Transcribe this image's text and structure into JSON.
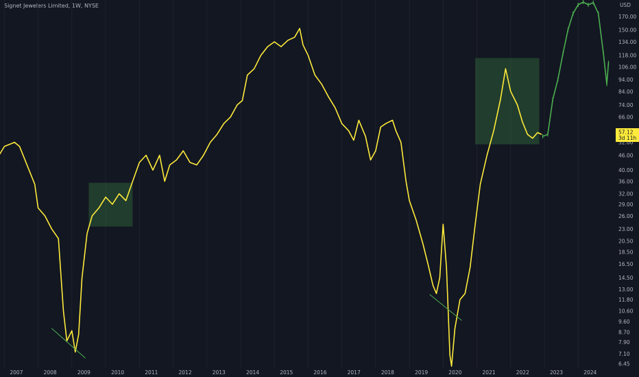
{
  "header": {
    "symbol_title": "Signet Jewelers Limited, 1W, NYSE"
  },
  "colors": {
    "background": "#131722",
    "price_line": "#ffeb3b",
    "recent_bars": "#4caf50",
    "box_fill": "#4caf50",
    "trend_line": "#4caf50",
    "axis_text": "#b2b5be",
    "badge": "#ffeb3b"
  },
  "chart_data": {
    "type": "line",
    "xlabel": "",
    "ylabel": "",
    "y_scale": "log",
    "y_unit": "USD",
    "x_ticks": [
      "2007",
      "2008",
      "2009",
      "2010",
      "2011",
      "2012",
      "2013",
      "2014",
      "2015",
      "2016",
      "2017",
      "2018",
      "2019",
      "2020",
      "2021",
      "2022",
      "2023",
      "2024"
    ],
    "y_ticks": [
      170.0,
      150.0,
      134.0,
      118.0,
      106.0,
      94.0,
      84.0,
      74.0,
      66.0,
      57.12,
      52.0,
      46.0,
      40.0,
      36.0,
      32.0,
      29.0,
      26.0,
      23.0,
      20.5,
      18.5,
      16.5,
      14.5,
      13.0,
      11.8,
      10.6,
      9.6,
      8.7,
      7.9,
      7.1,
      6.45
    ],
    "series": [
      {
        "style": "line",
        "points": [
          [
            2006.8,
            45
          ],
          [
            2007.0,
            50
          ],
          [
            2007.3,
            52
          ],
          [
            2007.45,
            50
          ],
          [
            2007.7,
            41
          ],
          [
            2007.9,
            35
          ],
          [
            2008.0,
            28
          ],
          [
            2008.2,
            26
          ],
          [
            2008.4,
            23
          ],
          [
            2008.6,
            21
          ],
          [
            2008.75,
            10.6
          ],
          [
            2008.85,
            8.0
          ],
          [
            2009.0,
            8.8
          ],
          [
            2009.1,
            7.2
          ],
          [
            2009.2,
            8.5
          ],
          [
            2009.3,
            14.5
          ],
          [
            2009.45,
            22
          ],
          [
            2009.6,
            26
          ],
          [
            2009.8,
            28
          ],
          [
            2010.0,
            31
          ],
          [
            2010.2,
            29
          ],
          [
            2010.4,
            32
          ],
          [
            2010.6,
            30
          ],
          [
            2010.8,
            36
          ],
          [
            2011.0,
            43
          ],
          [
            2011.2,
            46
          ],
          [
            2011.4,
            40
          ],
          [
            2011.6,
            46
          ],
          [
            2011.75,
            36
          ],
          [
            2011.9,
            42
          ],
          [
            2012.1,
            44
          ],
          [
            2012.3,
            48
          ],
          [
            2012.5,
            43
          ],
          [
            2012.7,
            42
          ],
          [
            2012.9,
            46
          ],
          [
            2013.1,
            52
          ],
          [
            2013.3,
            56
          ],
          [
            2013.5,
            62
          ],
          [
            2013.7,
            66
          ],
          [
            2013.9,
            74
          ],
          [
            2014.05,
            77
          ],
          [
            2014.2,
            98
          ],
          [
            2014.4,
            104
          ],
          [
            2014.6,
            118
          ],
          [
            2014.8,
            128
          ],
          [
            2015.0,
            134
          ],
          [
            2015.2,
            128
          ],
          [
            2015.4,
            136
          ],
          [
            2015.6,
            140
          ],
          [
            2015.75,
            152
          ],
          [
            2015.85,
            130
          ],
          [
            2016.0,
            118
          ],
          [
            2016.2,
            98
          ],
          [
            2016.4,
            90
          ],
          [
            2016.6,
            80
          ],
          [
            2016.8,
            72
          ],
          [
            2017.0,
            62
          ],
          [
            2017.2,
            58
          ],
          [
            2017.35,
            53
          ],
          [
            2017.5,
            64
          ],
          [
            2017.7,
            55
          ],
          [
            2017.85,
            44
          ],
          [
            2018.0,
            48
          ],
          [
            2018.15,
            60
          ],
          [
            2018.3,
            62
          ],
          [
            2018.5,
            64
          ],
          [
            2018.6,
            58
          ],
          [
            2018.75,
            52
          ],
          [
            2018.9,
            36
          ],
          [
            2019.0,
            30
          ],
          [
            2019.2,
            25
          ],
          [
            2019.4,
            20
          ],
          [
            2019.55,
            16.5
          ],
          [
            2019.7,
            13.5
          ],
          [
            2019.8,
            12.5
          ],
          [
            2019.9,
            14.5
          ],
          [
            2020.0,
            24
          ],
          [
            2020.1,
            16
          ],
          [
            2020.2,
            7.0
          ],
          [
            2020.25,
            6.3
          ],
          [
            2020.35,
            9.0
          ],
          [
            2020.5,
            11.8
          ],
          [
            2020.65,
            12.5
          ],
          [
            2020.8,
            16
          ],
          [
            2020.95,
            24
          ],
          [
            2021.1,
            35
          ],
          [
            2021.3,
            46
          ],
          [
            2021.5,
            58
          ],
          [
            2021.7,
            78
          ],
          [
            2021.85,
            104
          ],
          [
            2022.0,
            84
          ],
          [
            2022.2,
            74
          ],
          [
            2022.35,
            63
          ],
          [
            2022.5,
            56
          ],
          [
            2022.65,
            54
          ],
          [
            2022.8,
            57
          ],
          [
            2022.92,
            56
          ]
        ]
      },
      {
        "style": "bars",
        "points": [
          [
            2022.95,
            55
          ],
          [
            2023.1,
            56
          ],
          [
            2023.25,
            78
          ],
          [
            2023.4,
            94
          ],
          [
            2023.55,
            120
          ],
          [
            2023.7,
            150
          ],
          [
            2023.85,
            175
          ],
          [
            2024.0,
            190
          ],
          [
            2024.15,
            195
          ],
          [
            2024.3,
            190
          ],
          [
            2024.45,
            194
          ],
          [
            2024.6,
            175
          ],
          [
            2024.75,
            120
          ],
          [
            2024.85,
            90
          ],
          [
            2024.9,
            110
          ]
        ]
      }
    ],
    "highlight_boxes": [
      {
        "x_from": 2009.5,
        "x_to": 2010.8,
        "y_from": 23.5,
        "y_to": 35.5
      },
      {
        "x_from": 2020.95,
        "x_to": 2022.85,
        "y_from": 51,
        "y_to": 115
      }
    ],
    "trend_lines": [
      {
        "x_from": 2008.4,
        "x_to": 2009.4,
        "y_from": 9.0,
        "y_to": 6.8
      },
      {
        "x_from": 2019.6,
        "x_to": 2020.55,
        "y_from": 12.4,
        "y_to": 9.7
      }
    ],
    "last_price": {
      "value": "57.12",
      "countdown": "3d 11h"
    }
  }
}
